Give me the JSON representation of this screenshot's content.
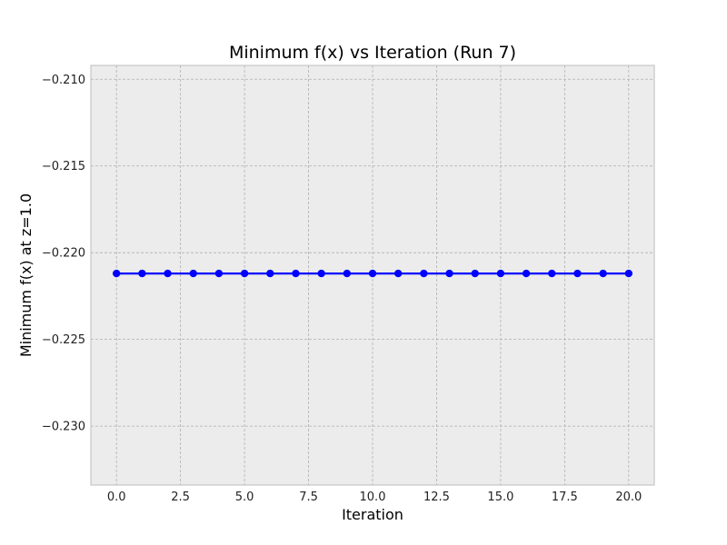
{
  "chart_data": {
    "type": "line",
    "title": "Minimum f(x) vs Iteration (Run 7)",
    "xlabel": "Iteration",
    "ylabel": "Minimum f(x) at z=1.0",
    "xlim": [
      -1,
      21
    ],
    "ylim": [
      -0.2334,
      -0.2092
    ],
    "xticks": [
      0.0,
      2.5,
      5.0,
      7.5,
      10.0,
      12.5,
      15.0,
      17.5,
      20.0
    ],
    "xtick_labels": [
      "0.0",
      "2.5",
      "5.0",
      "7.5",
      "10.0",
      "12.5",
      "15.0",
      "17.5",
      "20.0"
    ],
    "yticks": [
      -0.21,
      -0.215,
      -0.22,
      -0.225,
      -0.23
    ],
    "ytick_labels": [
      "−0.210",
      "−0.215",
      "−0.220",
      "−0.225",
      "−0.230"
    ],
    "grid": true,
    "series": [
      {
        "color": "#0000ff",
        "marker": "circle",
        "x": [
          0,
          1,
          2,
          3,
          4,
          5,
          6,
          7,
          8,
          9,
          10,
          11,
          12,
          13,
          14,
          15,
          16,
          17,
          18,
          19,
          20
        ],
        "values": [
          -0.2212,
          -0.2212,
          -0.2212,
          -0.2212,
          -0.2212,
          -0.2212,
          -0.2212,
          -0.2212,
          -0.2212,
          -0.2212,
          -0.2212,
          -0.2212,
          -0.2212,
          -0.2212,
          -0.2212,
          -0.2212,
          -0.2212,
          -0.2212,
          -0.2212,
          -0.2212,
          -0.2212
        ]
      }
    ],
    "colors": {
      "plot_background": "#ececec",
      "grid": "#b0b0b0",
      "axes_edge": "#bcbcbc"
    }
  }
}
